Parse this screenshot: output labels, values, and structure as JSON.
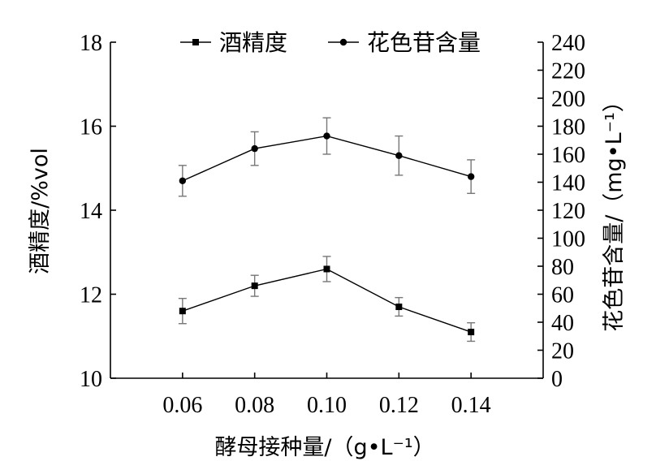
{
  "chart_data": {
    "type": "line",
    "xlabel": "酵母接种量/（g•L⁻¹）",
    "ylabel_left": "酒精度/%vol",
    "ylabel_right": "花色苷含量/（mg•L⁻¹）",
    "x": [
      0.06,
      0.08,
      0.1,
      0.12,
      0.14
    ],
    "x_tick_labels": [
      "0.06",
      "0.08",
      "0.10",
      "0.12",
      "0.14"
    ],
    "xlim": [
      0.04,
      0.16
    ],
    "ylim_left": [
      10,
      18
    ],
    "yticks_left": [
      "10",
      "12",
      "14",
      "16",
      "18"
    ],
    "ylim_right": [
      0,
      240
    ],
    "yticks_right": [
      "0",
      "20",
      "40",
      "60",
      "80",
      "100",
      "120",
      "140",
      "160",
      "180",
      "200",
      "220",
      "240"
    ],
    "legend_position": "top",
    "grid": false,
    "series": [
      {
        "name": "酒精度",
        "axis": "left",
        "marker": "square",
        "values": [
          11.6,
          12.2,
          12.6,
          11.7,
          11.1
        ],
        "errors": [
          0.3,
          0.25,
          0.3,
          0.22,
          0.22
        ]
      },
      {
        "name": "花色苷含量",
        "axis": "right",
        "marker": "circle",
        "values": [
          141,
          164,
          173,
          159,
          144
        ],
        "errors": [
          11,
          12,
          13,
          14,
          12
        ]
      }
    ]
  }
}
